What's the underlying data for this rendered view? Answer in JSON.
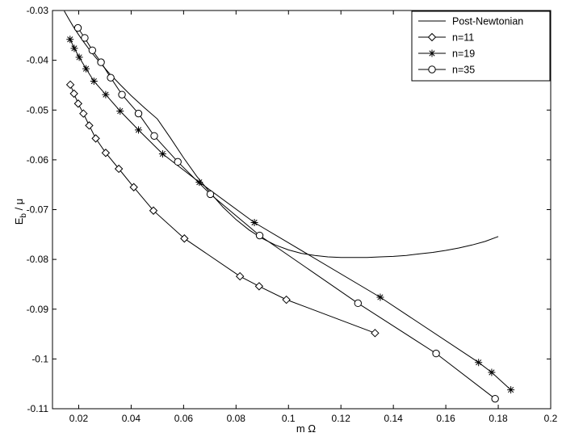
{
  "chart_data": {
    "type": "line",
    "title": "",
    "xlabel": "m Ω",
    "ylabel_main": "E",
    "ylabel_sub": "b",
    "ylabel_rest": "/ μ",
    "xlim": [
      0.01,
      0.2
    ],
    "ylim": [
      -0.11,
      -0.03
    ],
    "xticks": [
      0.02,
      0.04,
      0.06,
      0.08,
      0.1,
      0.12,
      0.14,
      0.16,
      0.18,
      0.2
    ],
    "xtick_labels": [
      "0.02",
      "0.04",
      "0.06",
      "0.08",
      "0.1",
      "0.12",
      "0.14",
      "0.16",
      "0.18",
      "0.2"
    ],
    "yticks": [
      -0.03,
      -0.04,
      -0.05,
      -0.06,
      -0.07,
      -0.08,
      -0.09,
      -0.1,
      -0.11
    ],
    "ytick_labels": [
      "-0.03",
      "-0.04",
      "-0.05",
      "-0.06",
      "-0.07",
      "-0.08",
      "-0.09",
      "-0.1",
      "-0.11"
    ],
    "grid": false,
    "legend_position": "top-right",
    "series": [
      {
        "name": "Post-Newtonian",
        "marker": "none",
        "color": "#000000",
        "x": [
          0.0145,
          0.016,
          0.018,
          0.02,
          0.022,
          0.025,
          0.028,
          0.032,
          0.036,
          0.04,
          0.045,
          0.05,
          0.055,
          0.06,
          0.065,
          0.07,
          0.075,
          0.08,
          0.085,
          0.09,
          0.095,
          0.1,
          0.105,
          0.11,
          0.115,
          0.12,
          0.125,
          0.13,
          0.135,
          0.14,
          0.145,
          0.15,
          0.155,
          0.16,
          0.165,
          0.17,
          0.175,
          0.18
        ],
        "y": [
          -0.0301,
          -0.0315,
          -0.0333,
          -0.0349,
          -0.0364,
          -0.0385,
          -0.0404,
          -0.0428,
          -0.045,
          -0.0471,
          -0.0495,
          -0.0518,
          -0.0556,
          -0.0596,
          -0.0633,
          -0.0665,
          -0.0695,
          -0.072,
          -0.0741,
          -0.0758,
          -0.0771,
          -0.0781,
          -0.0788,
          -0.0792,
          -0.0795,
          -0.0796,
          -0.0796,
          -0.0796,
          -0.0795,
          -0.0794,
          -0.0792,
          -0.0789,
          -0.0786,
          -0.0782,
          -0.0777,
          -0.0771,
          -0.0764,
          -0.0754
        ]
      },
      {
        "name": "n=11",
        "marker": "diamond",
        "color": "#000000",
        "x": [
          0.0168,
          0.0182,
          0.0198,
          0.0218,
          0.024,
          0.0265,
          0.0303,
          0.0353,
          0.041,
          0.0485,
          0.0603,
          0.0815,
          0.0888,
          0.0992,
          0.133
        ],
        "y": [
          -0.0449,
          -0.0467,
          -0.0487,
          -0.0507,
          -0.0531,
          -0.0557,
          -0.0586,
          -0.0618,
          -0.0655,
          -0.0702,
          -0.0758,
          -0.0834,
          -0.0854,
          -0.0881,
          -0.0948
        ]
      },
      {
        "name": "n=19",
        "marker": "star",
        "color": "#000000",
        "x": [
          0.0167,
          0.0183,
          0.0202,
          0.0228,
          0.0258,
          0.0303,
          0.0358,
          0.0428,
          0.052,
          0.066,
          0.087,
          0.135,
          0.1725,
          0.1775,
          0.1848
        ],
        "y": [
          -0.0358,
          -0.0376,
          -0.0394,
          -0.0417,
          -0.0442,
          -0.0469,
          -0.0502,
          -0.054,
          -0.0588,
          -0.0645,
          -0.0726,
          -0.0876,
          -0.1007,
          -0.1027,
          -0.1062
        ]
      },
      {
        "name": "n=35",
        "marker": "circle",
        "color": "#000000",
        "x": [
          0.0197,
          0.0223,
          0.0252,
          0.0285,
          0.0322,
          0.0365,
          0.0428,
          0.0488,
          0.0578,
          0.0702,
          0.089,
          0.1265,
          0.1563,
          0.1788
        ],
        "y": [
          -0.0335,
          -0.0355,
          -0.038,
          -0.0404,
          -0.0435,
          -0.0469,
          -0.0507,
          -0.0552,
          -0.0604,
          -0.0669,
          -0.0752,
          -0.0888,
          -0.0989,
          -0.108
        ]
      }
    ]
  }
}
